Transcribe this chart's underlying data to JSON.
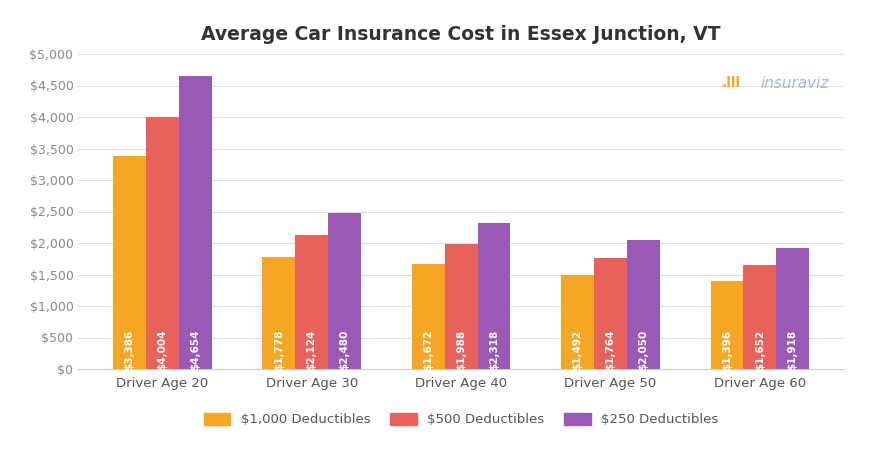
{
  "title": "Average Car Insurance Cost in Essex Junction, VT",
  "categories": [
    "Driver Age 20",
    "Driver Age 30",
    "Driver Age 40",
    "Driver Age 50",
    "Driver Age 60"
  ],
  "series": [
    {
      "label": "$1,000 Deductibles",
      "color": "#F5A623",
      "values": [
        3386,
        1778,
        1672,
        1492,
        1396
      ]
    },
    {
      "label": "$500 Deductibles",
      "color": "#E8615A",
      "values": [
        4004,
        2124,
        1988,
        1764,
        1652
      ]
    },
    {
      "label": "$250 Deductibles",
      "color": "#9B59B6",
      "values": [
        4654,
        2480,
        2318,
        2050,
        1918
      ]
    }
  ],
  "ylim": [
    0,
    5000
  ],
  "yticks": [
    0,
    500,
    1000,
    1500,
    2000,
    2500,
    3000,
    3500,
    4000,
    4500,
    5000
  ],
  "ytick_labels": [
    "$0",
    "$500",
    "$1,000",
    "$1,500",
    "$2,000",
    "$2,500",
    "$3,000",
    "$3,500",
    "$4,000",
    "$4,500",
    "$5,000"
  ],
  "bar_width": 0.22,
  "value_label_color": "#FFFFFF",
  "value_label_fontsize": 7.5,
  "background_color": "#FFFFFF",
  "grid_color": "#DDDDDD",
  "logo_text": "insuraviz",
  "logo_color": "#A0B8D8",
  "logo_bar_colors": [
    "#F5A623",
    "#E8615A",
    "#9B59B6"
  ]
}
